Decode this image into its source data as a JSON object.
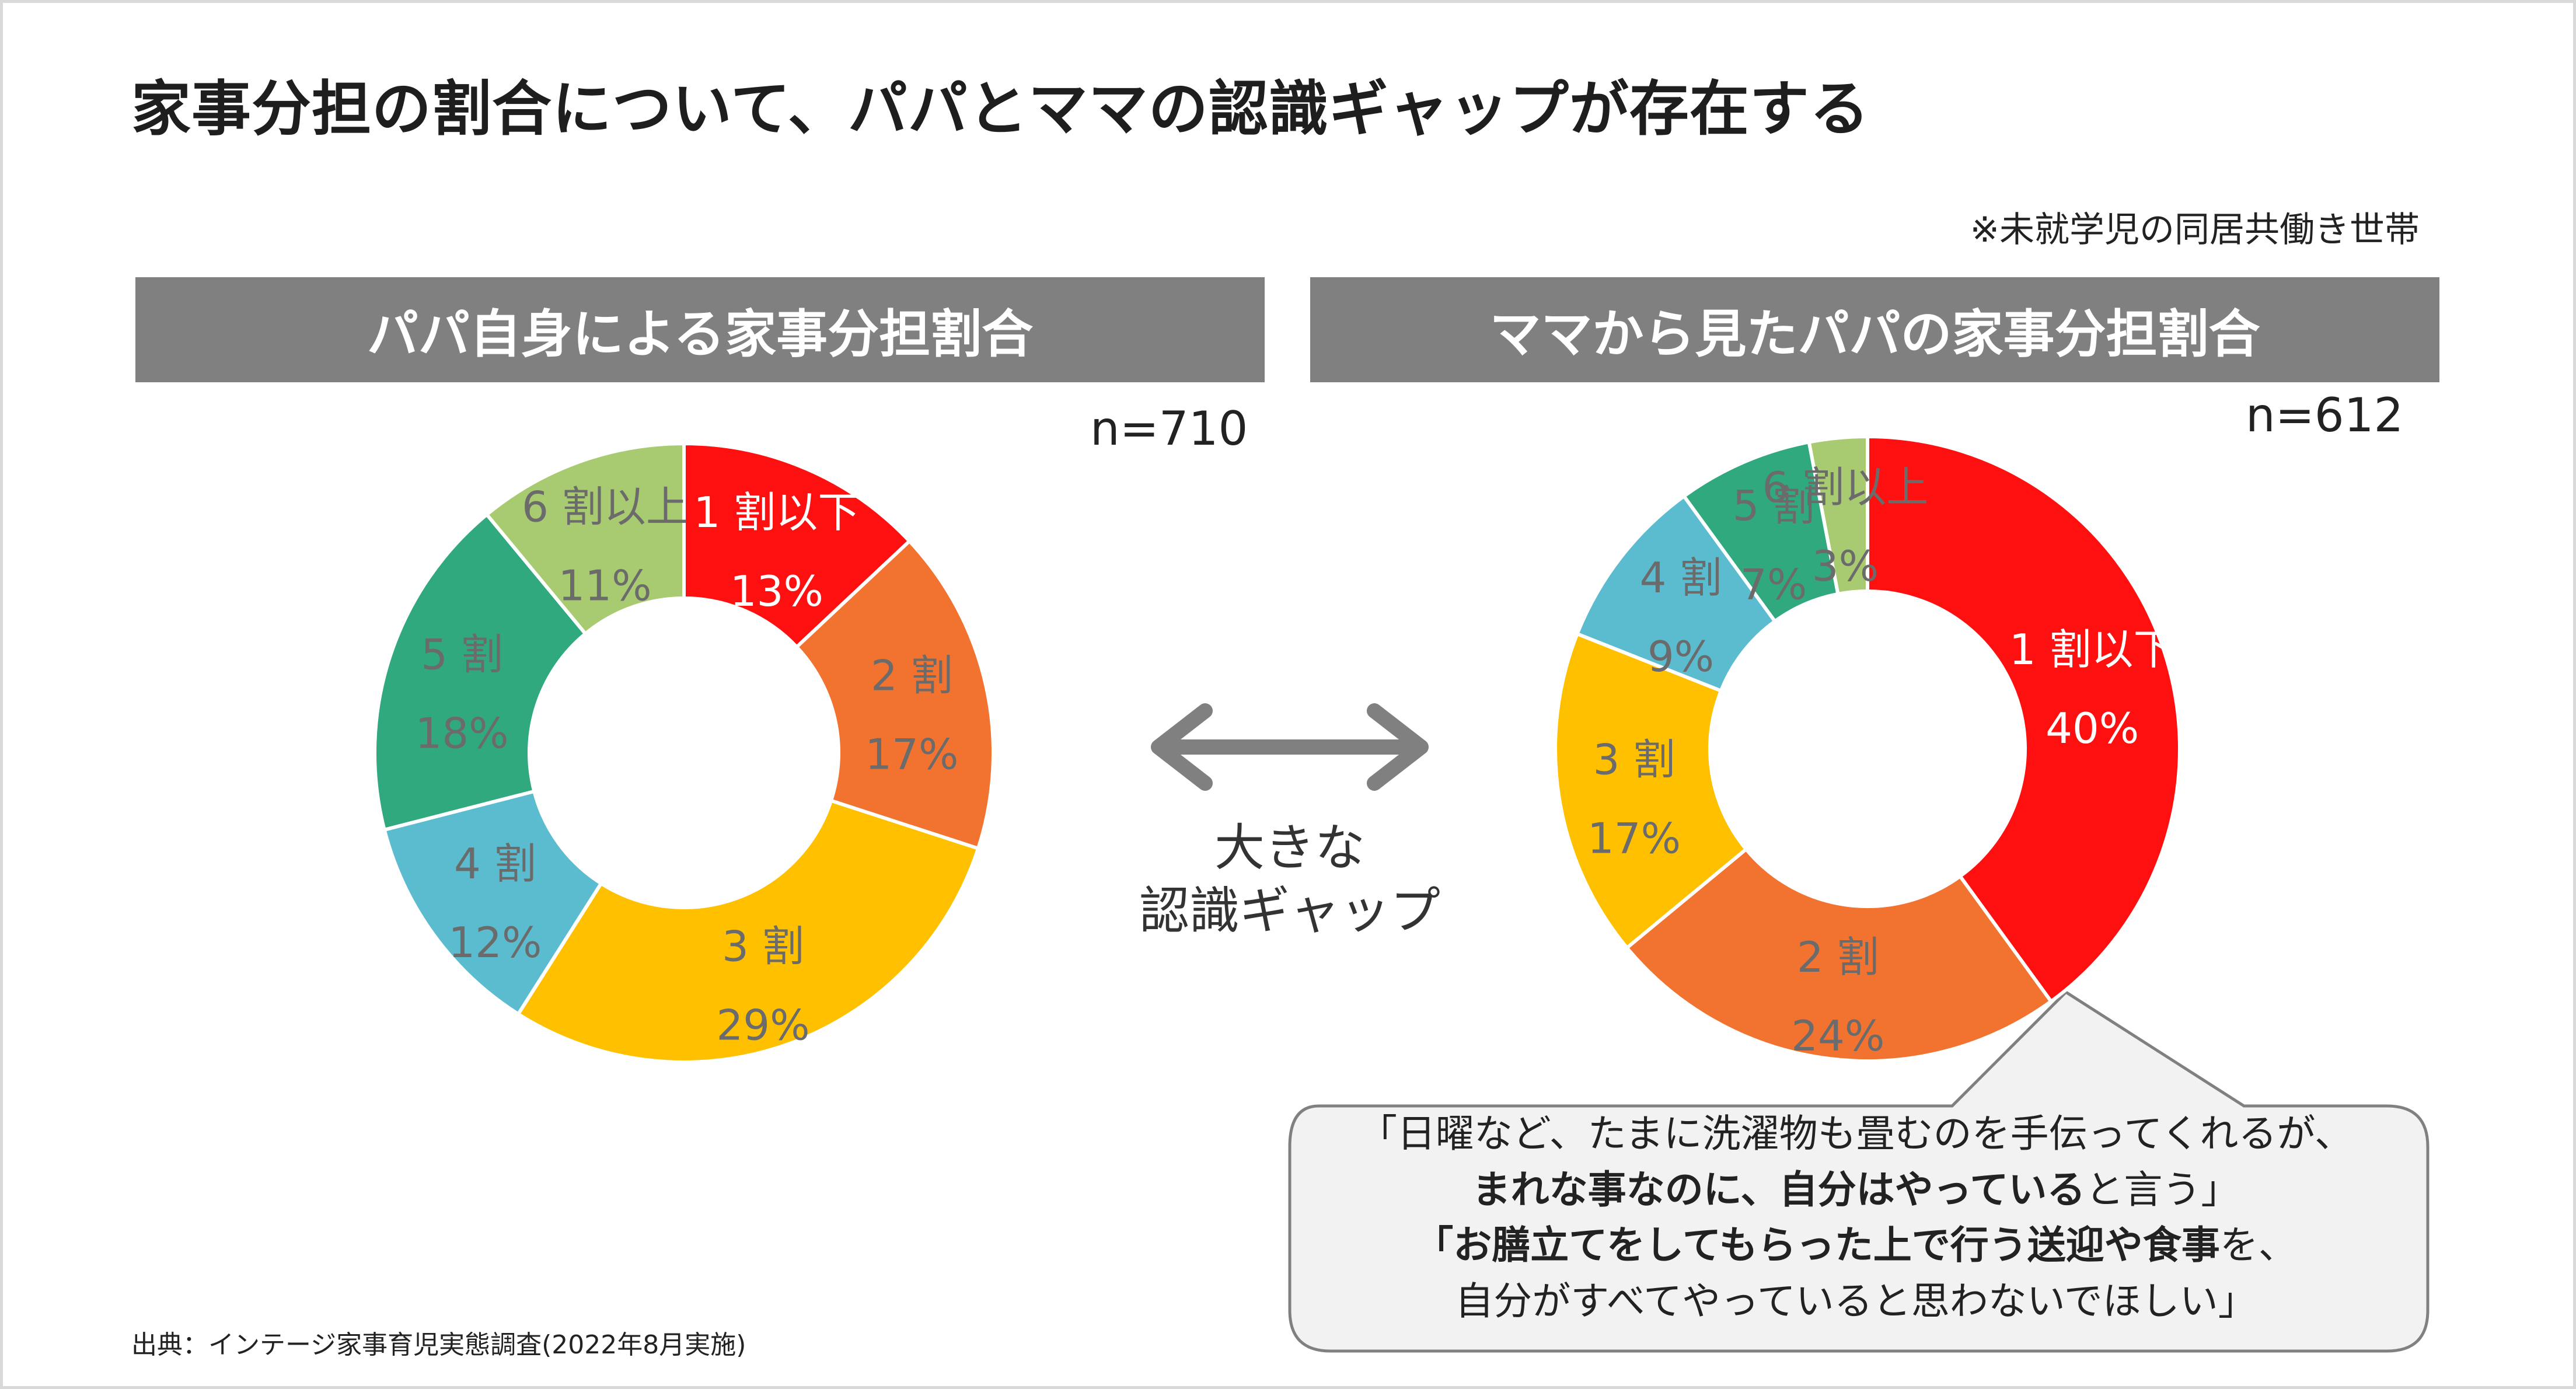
{
  "title": "家事分担の割合について、パパとママの認識ギャップが存在する",
  "note": "※未就学児の同居共働き世帯",
  "colors": {
    "c1": "#ff1010",
    "c2": "#f27330",
    "c3": "#ffc000",
    "c4": "#5bbccf",
    "c5": "#30a97e",
    "c6": "#a8cb72"
  },
  "gap_label": [
    "大きな",
    "認識ギャップ"
  ],
  "source": "出典：インテージ家事育児実態調査(2022年8月実施)",
  "quote": {
    "line1": "「日曜など、たまに洗濯物も畳むのを手伝ってくれるが、",
    "line2_bold": "まれな事なのに、自分はやっている",
    "line2_rest": "と言う」",
    "line3_bold": "「お膳立てをしてもらった上で行う送迎や食事",
    "line3_rest": "を、",
    "line4": "自分がすべてやっていると思わないでほしい」"
  },
  "chart_data": [
    {
      "type": "pie",
      "donut": true,
      "title": "パパ自身による家事分担割合",
      "n_label": "n=710",
      "categories": [
        "1 割以下",
        "2 割",
        "3 割",
        "4 割",
        "5 割",
        "6 割以上"
      ],
      "values": [
        13,
        17,
        29,
        12,
        18,
        11
      ],
      "value_labels": [
        "13%",
        "17%",
        "29%",
        "12%",
        "18%",
        "11%"
      ],
      "colors": [
        "#ff1010",
        "#f27330",
        "#ffc000",
        "#5bbccf",
        "#30a97e",
        "#a8cb72"
      ]
    },
    {
      "type": "pie",
      "donut": true,
      "title": "ママから見たパパの家事分担割合",
      "n_label": "n=612",
      "categories": [
        "1 割以下",
        "2 割",
        "3 割",
        "4 割",
        "5 割",
        "6 割以上"
      ],
      "values": [
        40,
        24,
        17,
        9,
        7,
        3
      ],
      "value_labels": [
        "40%",
        "24%",
        "17%",
        "9%",
        "7%",
        "3%"
      ],
      "colors": [
        "#ff1010",
        "#f27330",
        "#ffc000",
        "#5bbccf",
        "#30a97e",
        "#a8cb72"
      ]
    }
  ]
}
